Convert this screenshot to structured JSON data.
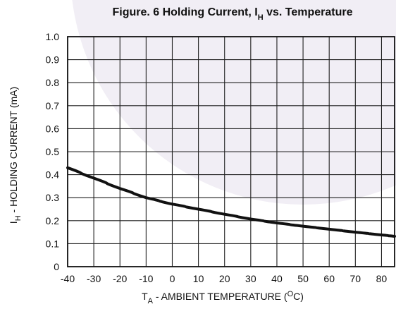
{
  "chart_data": {
    "type": "line",
    "title": {
      "main_prefix": "Figure. 6 Holding Current, I",
      "main_sub": "H",
      "main_suffix": " vs. Temperature"
    },
    "xlabel": {
      "prefix": "T",
      "sub": "A",
      "middle": " - AMBIENT TEMPERATURE (",
      "sup": "O",
      "suffix": "C)"
    },
    "ylabel": {
      "prefix": "I",
      "sub": "H",
      "suffix": " - HOLDING CURRENT (mA)"
    },
    "xlim": [
      -40,
      85
    ],
    "ylim": [
      0,
      1.0
    ],
    "x_ticks": [
      "-40",
      "-30",
      "-20",
      "-10",
      "0",
      "10",
      "20",
      "30",
      "40",
      "50",
      "60",
      "70",
      "80"
    ],
    "y_ticks": [
      "0",
      "0.1",
      "0.2",
      "0.3",
      "0.4",
      "0.5",
      "0.6",
      "0.7",
      "0.8",
      "0.9",
      "1.0"
    ],
    "grid": true,
    "series": [
      {
        "x": [
          -40,
          -30,
          -20,
          -10,
          0,
          10,
          20,
          30,
          40,
          50,
          60,
          70,
          80,
          85
        ],
        "y": [
          0.43,
          0.385,
          0.34,
          0.3,
          0.272,
          0.25,
          0.228,
          0.207,
          0.19,
          0.176,
          0.163,
          0.15,
          0.138,
          0.132
        ],
        "color": "#111111"
      }
    ],
    "background_watermark_color": "#f1eef5"
  }
}
